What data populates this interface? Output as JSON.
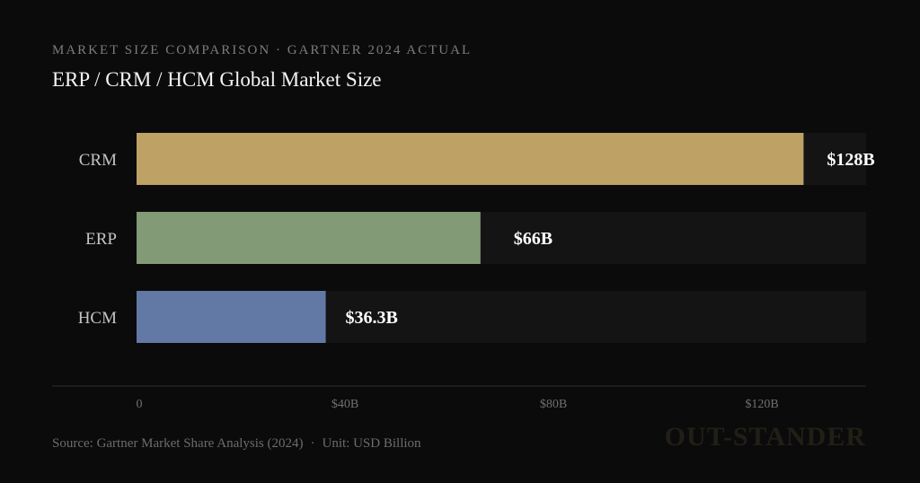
{
  "header": {
    "kicker": "Market Size Comparison · Gartner 2024 Actual",
    "title": "ERP / CRM / HCM Global Market Size"
  },
  "chart_data": {
    "type": "bar",
    "orientation": "horizontal",
    "categories": [
      "CRM",
      "ERP",
      "HCM"
    ],
    "values": [
      128,
      66,
      36.3
    ],
    "value_labels": [
      "$128B",
      "$66B",
      "$36.3B"
    ],
    "colors": [
      "#bea265",
      "#839a76",
      "#6279a5"
    ],
    "x_ticks": [
      0,
      40,
      80,
      120
    ],
    "x_tick_labels": [
      "0",
      "$40B",
      "$80B",
      "$120B"
    ],
    "xlim": [
      0,
      140
    ],
    "unit": "USD Billion",
    "title": "ERP / CRM / HCM Global Market Size"
  },
  "footer": {
    "source": "Source: Gartner Market Share Analysis (2024)",
    "separator": "·",
    "unit": "Unit: USD Billion"
  },
  "watermark": "OUT-STANDER"
}
